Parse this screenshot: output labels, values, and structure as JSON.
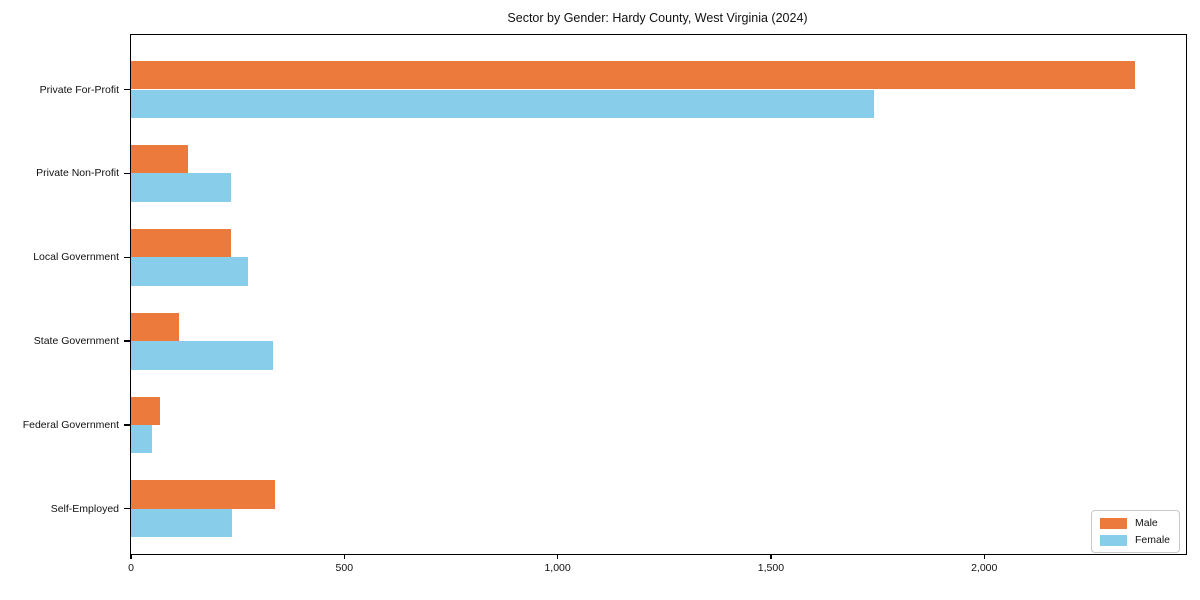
{
  "chart_data": {
    "type": "bar",
    "orientation": "horizontal",
    "title": "Sector by Gender: Hardy County, West Virginia (2024)",
    "categories": [
      "Private For-Profit",
      "Private Non-Profit",
      "Local Government",
      "State Government",
      "Federal Government",
      "Self-Employed"
    ],
    "series": [
      {
        "name": "Male",
        "color": "#EC7A3C",
        "values": [
          2354,
          134,
          234,
          112,
          69,
          338
        ]
      },
      {
        "name": "Female",
        "color": "#88CEEB",
        "values": [
          1741,
          234,
          275,
          334,
          49,
          237
        ]
      }
    ],
    "xlabel": "",
    "ylabel": "",
    "xlim": [
      0,
      2473
    ],
    "xticks": [
      {
        "value": 0,
        "label": "0"
      },
      {
        "value": 500,
        "label": "500"
      },
      {
        "value": 1000,
        "label": "1,000"
      },
      {
        "value": 1500,
        "label": "1,500"
      },
      {
        "value": 2000,
        "label": "2,000"
      }
    ],
    "grid": false,
    "legend": {
      "position": "lower right"
    }
  }
}
